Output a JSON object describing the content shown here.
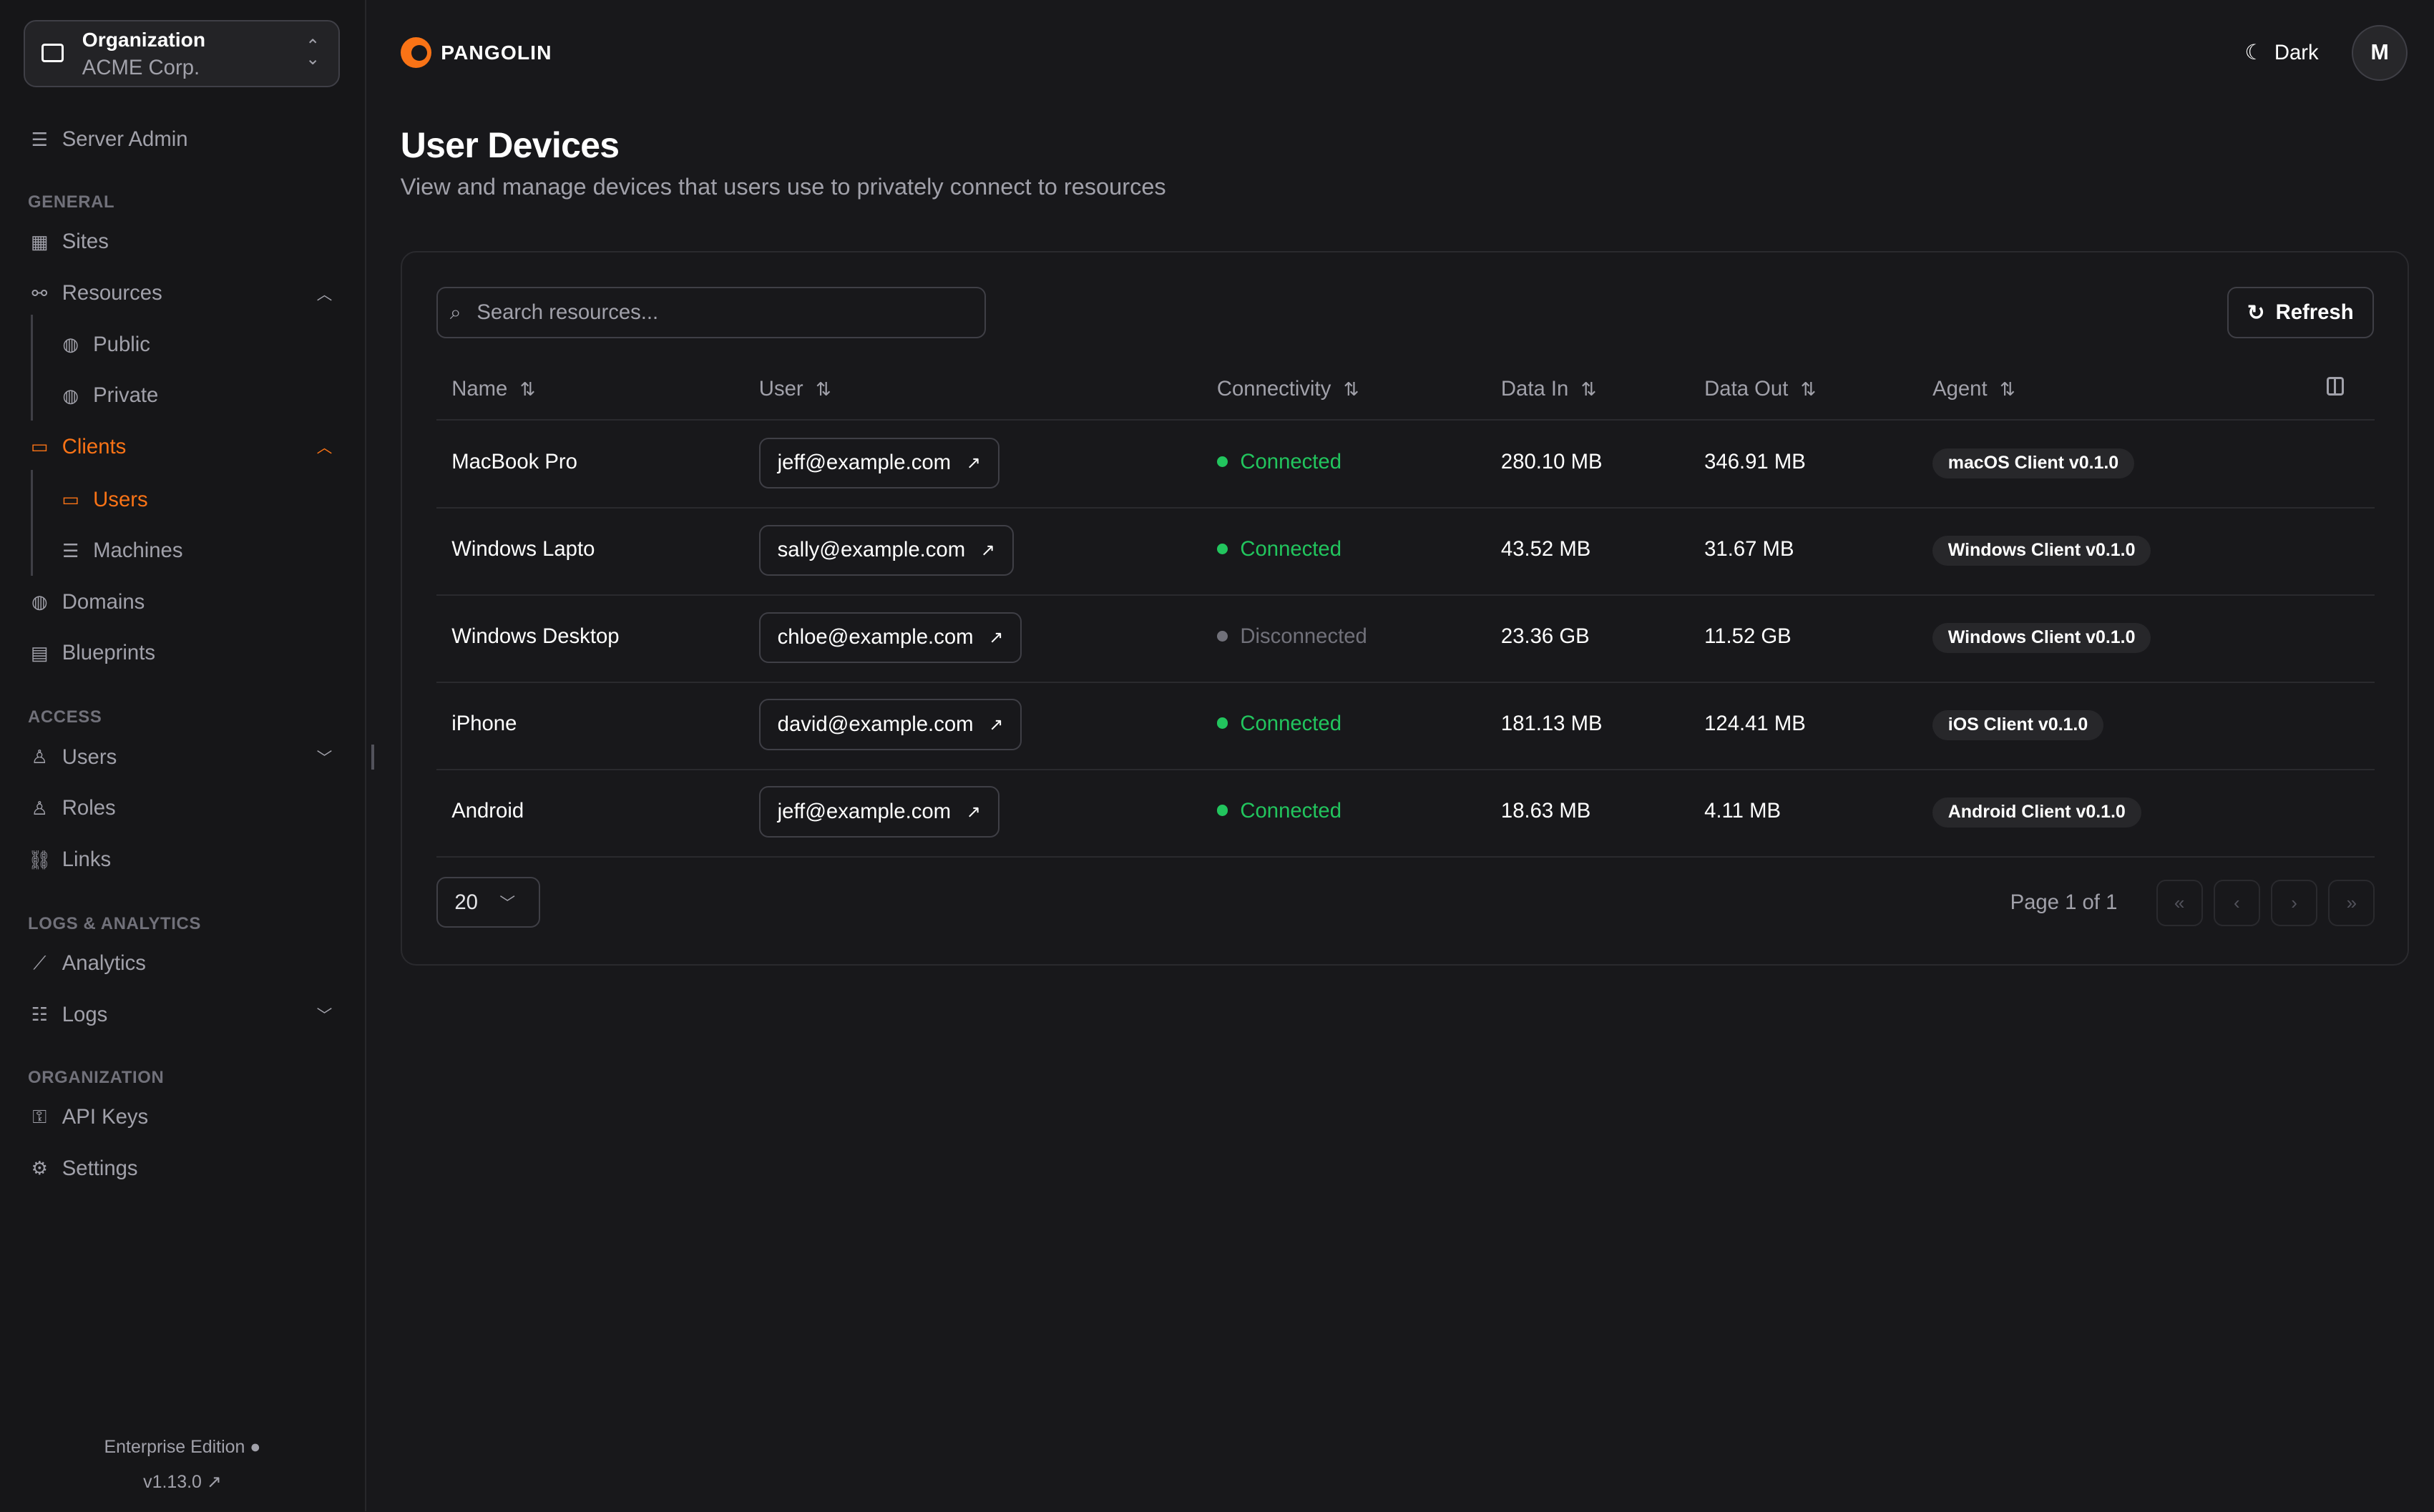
{
  "org": {
    "label": "Organization",
    "name": "ACME Corp."
  },
  "sidebar": {
    "server_admin": "Server Admin",
    "sections": {
      "general": "GENERAL",
      "access": "ACCESS",
      "logs": "LOGS & ANALYTICS",
      "organization": "ORGANIZATION"
    },
    "items": {
      "sites": "Sites",
      "resources": "Resources",
      "public": "Public",
      "private": "Private",
      "clients": "Clients",
      "users": "Users",
      "machines": "Machines",
      "domains": "Domains",
      "blueprints": "Blueprints",
      "access_users": "Users",
      "roles": "Roles",
      "links": "Links",
      "analytics": "Analytics",
      "logs": "Logs",
      "api_keys": "API Keys",
      "settings": "Settings"
    },
    "footer": {
      "edition": "Enterprise Edition",
      "version": "v1.13.0"
    }
  },
  "header": {
    "brand": "PANGOLIN",
    "theme": "Dark",
    "avatar": "M"
  },
  "page": {
    "title": "User Devices",
    "subtitle": "View and manage devices that users use to privately connect to resources"
  },
  "toolbar": {
    "search_placeholder": "Search resources...",
    "refresh": "Refresh"
  },
  "table": {
    "columns": [
      "Name",
      "User",
      "Connectivity",
      "Data In",
      "Data Out",
      "Agent"
    ],
    "rows": [
      {
        "name": "MacBook Pro",
        "user": "jeff@example.com",
        "status": "Connected",
        "data_in": "280.10 MB",
        "data_out": "346.91 MB",
        "agent": "macOS Client v0.1.0"
      },
      {
        "name": "Windows Lapto",
        "user": "sally@example.com",
        "status": "Connected",
        "data_in": "43.52 MB",
        "data_out": "31.67 MB",
        "agent": "Windows Client v0.1.0"
      },
      {
        "name": "Windows Desktop",
        "user": "chloe@example.com",
        "status": "Disconnected",
        "data_in": "23.36 GB",
        "data_out": "11.52 GB",
        "agent": "Windows Client v0.1.0"
      },
      {
        "name": "iPhone",
        "user": "david@example.com",
        "status": "Connected",
        "data_in": "181.13 MB",
        "data_out": "124.41 MB",
        "agent": "iOS Client v0.1.0"
      },
      {
        "name": "Android",
        "user": "jeff@example.com",
        "status": "Connected",
        "data_in": "18.63 MB",
        "data_out": "4.11 MB",
        "agent": "Android Client v0.1.0"
      }
    ]
  },
  "pagination": {
    "page_size": "20",
    "info": "Page 1 of 1"
  },
  "colors": {
    "accent": "#f97316",
    "connected": "#22c55e",
    "disconnected": "#71717a"
  }
}
